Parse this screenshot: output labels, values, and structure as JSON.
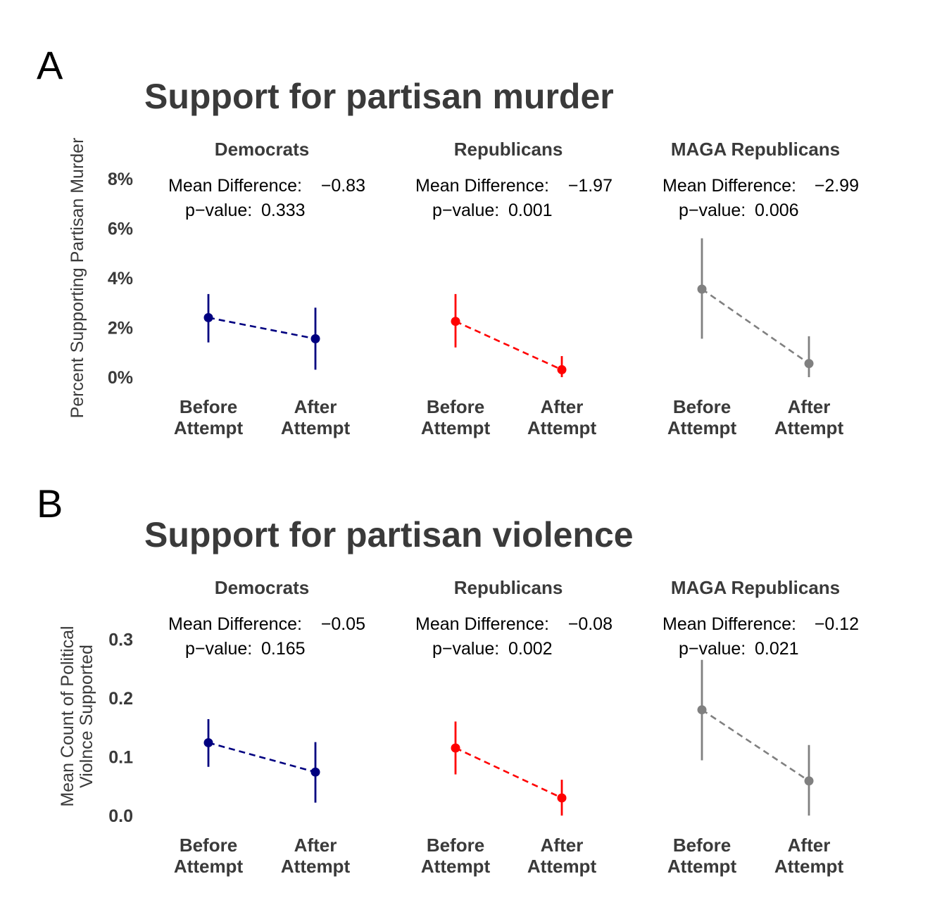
{
  "chart_data": [
    {
      "panel_label": "A",
      "type": "scatter",
      "title": "Support for partisan murder",
      "ylabel_lines": [
        "Percent Supporting Partisan Murder"
      ],
      "ylim": [
        -0.5,
        8.5
      ],
      "yticks": [
        0,
        2,
        4,
        6,
        8
      ],
      "ytick_labels": [
        "0%",
        "2%",
        "4%",
        "6%",
        "8%"
      ],
      "categories": [
        [
          "Before",
          "Attempt"
        ],
        [
          "After",
          "Attempt"
        ]
      ],
      "mean_diff_label": "Mean Difference:",
      "p_label": "p−value:",
      "series": [
        {
          "name": "Democrats",
          "color": "#000080",
          "values": [
            2.4,
            1.55
          ],
          "ci_low": [
            1.4,
            0.3
          ],
          "ci_high": [
            3.35,
            2.8
          ],
          "mean_difference": "−0.83",
          "p_value": "0.333"
        },
        {
          "name": "Republicans",
          "color": "#ff0000",
          "values": [
            2.25,
            0.3
          ],
          "ci_low": [
            1.2,
            0.0
          ],
          "ci_high": [
            3.35,
            0.85
          ],
          "mean_difference": "−1.97",
          "p_value": "0.001"
        },
        {
          "name": "MAGA Republicans",
          "color": "#808080",
          "values": [
            3.55,
            0.55
          ],
          "ci_low": [
            1.55,
            0.0
          ],
          "ci_high": [
            5.6,
            1.65
          ],
          "mean_difference": "−2.99",
          "p_value": "0.006"
        }
      ]
    },
    {
      "panel_label": "B",
      "type": "scatter",
      "title": "Support for partisan violence",
      "ylabel_lines": [
        "Mean Count of Political",
        "Violnce Supported"
      ],
      "ylim": [
        -0.01,
        0.32
      ],
      "yticks": [
        0.0,
        0.1,
        0.2,
        0.3
      ],
      "ytick_labels": [
        "0.0",
        "0.1",
        "0.2",
        "0.3"
      ],
      "categories": [
        [
          "Before",
          "Attempt"
        ],
        [
          "After",
          "Attempt"
        ]
      ],
      "mean_diff_label": "Mean Difference:",
      "p_label": "p−value:",
      "series": [
        {
          "name": "Democrats",
          "color": "#000080",
          "values": [
            0.124,
            0.074
          ],
          "ci_low": [
            0.083,
            0.022
          ],
          "ci_high": [
            0.164,
            0.125
          ],
          "mean_difference": "−0.05",
          "p_value": "0.165"
        },
        {
          "name": "Republicans",
          "color": "#ff0000",
          "values": [
            0.115,
            0.03
          ],
          "ci_low": [
            0.07,
            0.0
          ],
          "ci_high": [
            0.16,
            0.061
          ],
          "mean_difference": "−0.08",
          "p_value": "0.002"
        },
        {
          "name": "MAGA Republicans",
          "color": "#808080",
          "values": [
            0.18,
            0.059
          ],
          "ci_low": [
            0.094,
            0.0
          ],
          "ci_high": [
            0.265,
            0.12
          ],
          "mean_difference": "−0.12",
          "p_value": "0.021"
        }
      ]
    }
  ]
}
